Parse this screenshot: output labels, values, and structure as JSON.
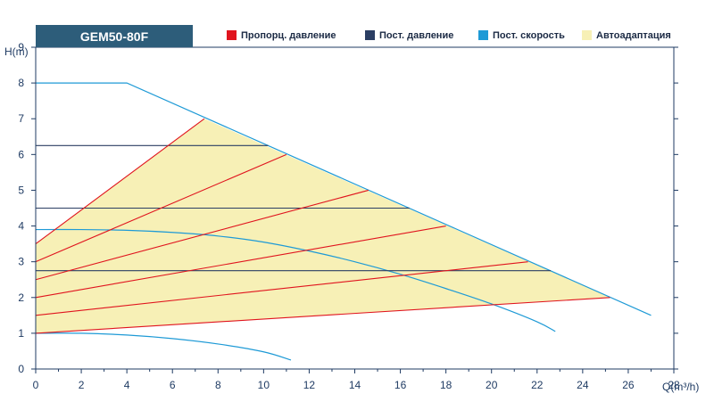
{
  "chart_data": {
    "type": "line",
    "title": "GEM50-80F",
    "xlabel": "Q(m³/h)",
    "ylabel": "H(m)",
    "xlim": [
      0,
      28
    ],
    "ylim": [
      0,
      9
    ],
    "xticks": [
      0,
      2,
      4,
      6,
      8,
      10,
      12,
      14,
      16,
      18,
      20,
      22,
      24,
      26,
      28
    ],
    "yticks": [
      0,
      1,
      2,
      3,
      4,
      5,
      6,
      7,
      8,
      9
    ],
    "grid": false,
    "legend_position": "top",
    "legend": [
      {
        "name": "Пропорц. давление",
        "color": "#e0141e"
      },
      {
        "name": "Пост. давление",
        "color": "#2b3e63"
      },
      {
        "name": "Пост. скорость",
        "color": "#1e9ad6"
      },
      {
        "name": "Автоадаптация",
        "color": "#f7f0b6"
      }
    ],
    "series": [
      {
        "group": "Автоадаптация",
        "kind": "area",
        "points": [
          [
            0,
            1
          ],
          [
            0,
            3.5
          ],
          [
            7.4,
            7
          ],
          [
            25.2,
            2
          ]
        ]
      },
      {
        "group": "Пост. скорость",
        "kind": "curve",
        "points": [
          [
            0,
            8
          ],
          [
            4,
            8
          ],
          [
            27,
            1.5
          ]
        ]
      },
      {
        "group": "Пост. скорость",
        "kind": "curve",
        "points": [
          [
            0,
            3.9
          ],
          [
            2,
            3.9
          ],
          [
            4,
            3.88
          ],
          [
            6,
            3.82
          ],
          [
            8,
            3.72
          ],
          [
            10,
            3.55
          ],
          [
            12,
            3.3
          ],
          [
            14,
            3.0
          ],
          [
            16,
            2.65
          ],
          [
            18,
            2.25
          ],
          [
            20,
            1.82
          ],
          [
            22,
            1.32
          ],
          [
            22.8,
            1.05
          ]
        ]
      },
      {
        "group": "Пост. скорость",
        "kind": "curve",
        "points": [
          [
            0,
            1
          ],
          [
            2,
            1
          ],
          [
            4,
            0.95
          ],
          [
            6,
            0.85
          ],
          [
            8,
            0.7
          ],
          [
            10,
            0.48
          ],
          [
            11.2,
            0.25
          ]
        ]
      },
      {
        "group": "Пост. давление",
        "kind": "line",
        "points": [
          [
            0,
            6.25
          ],
          [
            10.2,
            6.25
          ]
        ]
      },
      {
        "group": "Пост. давление",
        "kind": "line",
        "points": [
          [
            0,
            4.5
          ],
          [
            16.4,
            4.5
          ]
        ]
      },
      {
        "group": "Пост. давление",
        "kind": "line",
        "points": [
          [
            0,
            2.75
          ],
          [
            22.6,
            2.75
          ]
        ]
      },
      {
        "group": "Пропорц. давление",
        "kind": "line",
        "points": [
          [
            0,
            3.5
          ],
          [
            7.4,
            7
          ]
        ]
      },
      {
        "group": "Пропорц. давление",
        "kind": "line",
        "points": [
          [
            0,
            3
          ],
          [
            11.0,
            6
          ]
        ]
      },
      {
        "group": "Пропорц. давление",
        "kind": "line",
        "points": [
          [
            0,
            2.5
          ],
          [
            14.6,
            5
          ]
        ]
      },
      {
        "group": "Пропорц. давление",
        "kind": "line",
        "points": [
          [
            0,
            2
          ],
          [
            18.0,
            4
          ]
        ]
      },
      {
        "group": "Пропорц. давление",
        "kind": "line",
        "points": [
          [
            0,
            1.5
          ],
          [
            21.6,
            3
          ]
        ]
      },
      {
        "group": "Пропорц. давление",
        "kind": "line",
        "points": [
          [
            0,
            1
          ],
          [
            25.2,
            2
          ]
        ]
      }
    ]
  },
  "colors": {
    "axis": "#1f3b63",
    "title_bg": "#2d5d7a"
  }
}
